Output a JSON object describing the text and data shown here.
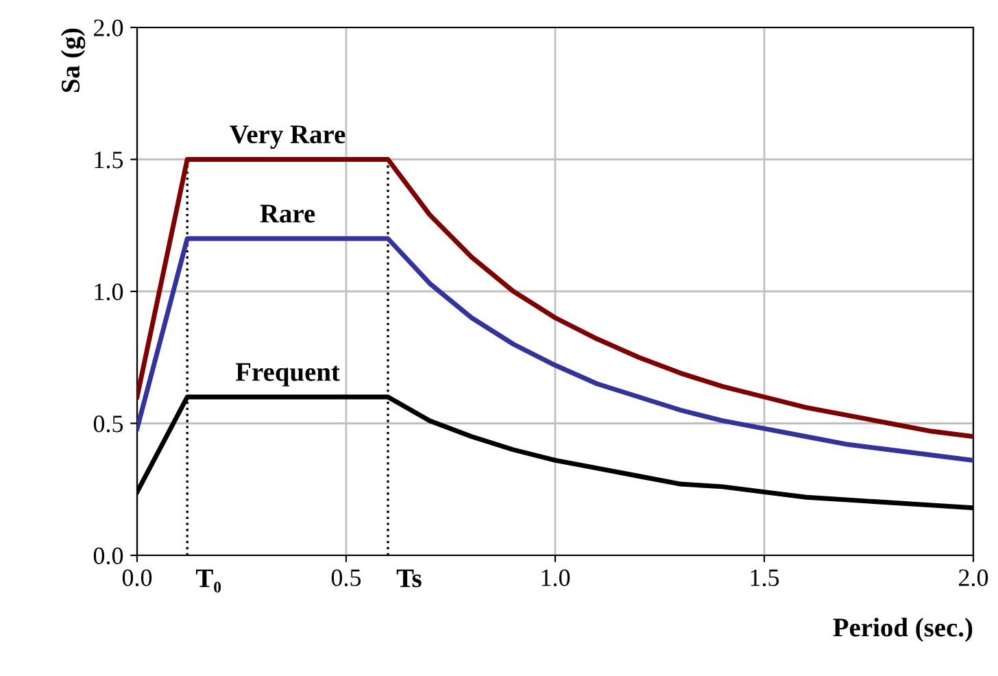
{
  "chart_data": {
    "type": "line",
    "xlabel": "Period (sec.)",
    "ylabel": "Sa (g)",
    "xlim": [
      0,
      2.0
    ],
    "ylim": [
      0,
      2.0
    ],
    "xticks": [
      {
        "value": 0,
        "label": "0.0"
      },
      0.5,
      {
        "value": 1,
        "label": "1.0"
      },
      1.5,
      {
        "value": 2,
        "label": "2.0"
      }
    ],
    "yticks": [
      {
        "value": 0,
        "label": "0.0"
      },
      0.5,
      {
        "value": 1,
        "label": "1.0"
      },
      1.5,
      {
        "value": 2,
        "label": "2.0"
      }
    ],
    "grid": true,
    "legend": false,
    "line_style": "solid",
    "marker": "none",
    "x": [
      0,
      0.12,
      0.6,
      0.7,
      0.8,
      0.9,
      1.0,
      1.1,
      1.2,
      1.3,
      1.4,
      1.5,
      1.6,
      1.7,
      1.8,
      1.9,
      2.0
    ],
    "series": [
      {
        "name": "Very Rare",
        "color": "#800000",
        "values": [
          0.6,
          1.5,
          1.5,
          1.29,
          1.13,
          1.0,
          0.9,
          0.82,
          0.75,
          0.69,
          0.64,
          0.6,
          0.56,
          0.53,
          0.5,
          0.47,
          0.45
        ]
      },
      {
        "name": "Rare",
        "color": "#3333a0",
        "values": [
          0.48,
          1.2,
          1.2,
          1.03,
          0.9,
          0.8,
          0.72,
          0.65,
          0.6,
          0.55,
          0.51,
          0.48,
          0.45,
          0.42,
          0.4,
          0.38,
          0.36
        ]
      },
      {
        "name": "Frequent",
        "color": "#000000",
        "values": [
          0.24,
          0.6,
          0.6,
          0.51,
          0.45,
          0.4,
          0.36,
          0.33,
          0.3,
          0.27,
          0.26,
          0.24,
          0.22,
          0.21,
          0.2,
          0.19,
          0.18
        ]
      }
    ],
    "ref_lines": [
      {
        "axis": "x",
        "value": 0.12,
        "label": "T₀",
        "line_style": "dotted",
        "color": "#000000"
      },
      {
        "axis": "x",
        "value": 0.6,
        "label": "Ts",
        "line_style": "dotted",
        "color": "#000000"
      }
    ]
  }
}
